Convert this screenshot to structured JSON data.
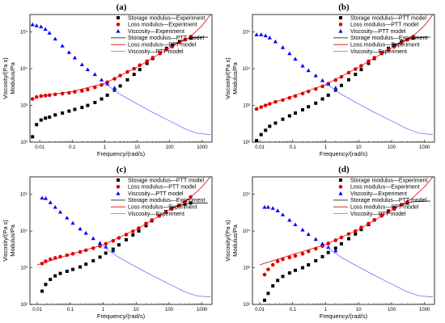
{
  "chart_data": [
    {
      "type": "line",
      "panel_label": "(a)",
      "xlabel": "Frequency/(rad/s)",
      "ylabel": [
        "Viscosity/(Pa s)",
        "Modulus/Pa"
      ],
      "x_scale": "log",
      "y_scale": "log",
      "xlim": [
        0.005,
        2000
      ],
      "ylim": [
        100,
        300000
      ],
      "x_ticks": [
        "0.01",
        "0.1",
        "1",
        "10",
        "100",
        "1000"
      ],
      "y_ticks": [
        "10²",
        "10³",
        "10⁴",
        "10⁵"
      ],
      "legend": [
        "Storage modulus—Experiment",
        "Loss modulus—Experiment",
        "Viscosity—Experiment",
        "Storage modulus—PTT model",
        "Loss modulus—PTT model",
        "Viscosity—PTT model"
      ],
      "series": [
        {
          "name": "Storage modulus—Experiment",
          "kind": "marker",
          "marker": "square",
          "color": "#000000",
          "x": [
            0.006,
            0.008,
            0.011,
            0.015,
            0.02,
            0.03,
            0.05,
            0.08,
            0.12,
            0.2,
            0.3,
            0.5,
            0.8,
            1.2,
            2,
            3,
            5,
            8,
            12,
            20,
            30,
            50,
            80,
            120,
            200,
            300,
            450
          ],
          "y": [
            140,
            300,
            400,
            450,
            480,
            550,
            620,
            700,
            780,
            880,
            1000,
            1200,
            1500,
            1900,
            2600,
            3400,
            5000,
            7000,
            9500,
            14000,
            19000,
            27000,
            36000,
            44000,
            55000,
            62000,
            68000
          ]
        },
        {
          "name": "Loss modulus—Experiment",
          "kind": "marker",
          "marker": "circle",
          "color": "#e00000",
          "x": [
            0.006,
            0.008,
            0.011,
            0.015,
            0.02,
            0.03,
            0.05,
            0.08,
            0.12,
            0.2,
            0.3,
            0.5,
            0.8,
            1.2,
            2,
            3,
            5,
            8,
            12,
            20,
            30,
            50,
            80,
            120,
            200,
            300,
            450
          ],
          "y": [
            1500,
            1700,
            1800,
            1850,
            1900,
            2000,
            2100,
            2200,
            2350,
            2500,
            2700,
            3100,
            3600,
            4300,
            5300,
            6500,
            8200,
            10000,
            12500,
            16000,
            20000,
            26000,
            33000,
            40000,
            52000,
            62000,
            75000
          ]
        },
        {
          "name": "Viscosity—Experiment",
          "kind": "marker",
          "marker": "triangle",
          "color": "#0000ff",
          "x": [
            0.006,
            0.008,
            0.011,
            0.015,
            0.02,
            0.03,
            0.05,
            0.08,
            0.12,
            0.2,
            0.3,
            0.5,
            0.8,
            1.2,
            2
          ],
          "y": [
            160000,
            150000,
            140000,
            120000,
            95000,
            65000,
            42000,
            28000,
            20000,
            13000,
            9500,
            7000,
            5000,
            3900,
            3000
          ]
        },
        {
          "name": "Storage modulus—PTT model",
          "kind": "line",
          "color": "#000000",
          "x": [
            100,
            200,
            400,
            800,
            1500
          ],
          "y": [
            40000,
            55000,
            68000,
            72000,
            72500
          ]
        },
        {
          "name": "Loss modulus—PTT model",
          "kind": "line",
          "color": "#e00000",
          "x": [
            0.01,
            0.1,
            1,
            10,
            100,
            400,
            1000,
            1800
          ],
          "y": [
            1800,
            2400,
            4000,
            11000,
            37000,
            70000,
            150000,
            300000
          ]
        },
        {
          "name": "Viscosity—PTT model",
          "kind": "line",
          "color": "#7070ff",
          "x": [
            1,
            3,
            10,
            30,
            100,
            300,
            700,
            1800
          ],
          "y": [
            4000,
            2000,
            1100,
            650,
            380,
            230,
            175,
            160
          ]
        }
      ]
    },
    {
      "type": "line",
      "panel_label": "(b)",
      "xlabel": "Frequency/(rad/s)",
      "ylabel": [
        "Viscosity/(Pa s)",
        "Modulus/Pa"
      ],
      "x_scale": "log",
      "y_scale": "log",
      "xlim": [
        0.006,
        2000
      ],
      "ylim": [
        100,
        300000
      ],
      "x_ticks": [
        "0.01",
        "0.1",
        "1",
        "10",
        "100",
        "1000"
      ],
      "y_ticks": [
        "10²",
        "10³",
        "10⁴",
        "10⁵"
      ],
      "legend": [
        "Storage modulus—PTT model",
        "Loss modulus—PTT model",
        "Viscosity—PTT model",
        "Storage modulus—Experiment",
        "Loss modulus—Experiment",
        "Viscosity—Experiment"
      ],
      "series": [
        {
          "name": "Storage modulus—PTT model",
          "kind": "marker",
          "marker": "square",
          "color": "#000000",
          "x": [
            0.008,
            0.011,
            0.015,
            0.02,
            0.03,
            0.05,
            0.08,
            0.12,
            0.2,
            0.3,
            0.5,
            0.8,
            1.2,
            2,
            3,
            5,
            8,
            12,
            20,
            30,
            50,
            80,
            120,
            200,
            300,
            450
          ],
          "y": [
            110,
            160,
            210,
            270,
            330,
            420,
            520,
            620,
            760,
            920,
            1150,
            1500,
            1900,
            2600,
            3500,
            5000,
            7000,
            9500,
            14000,
            19000,
            27000,
            36000,
            44000,
            55000,
            62000,
            68000
          ]
        },
        {
          "name": "Loss modulus—PTT model",
          "kind": "marker",
          "marker": "circle",
          "color": "#e00000",
          "x": [
            0.008,
            0.011,
            0.015,
            0.02,
            0.03,
            0.05,
            0.08,
            0.12,
            0.2,
            0.3,
            0.5,
            0.8,
            1.2,
            2,
            3,
            5,
            8,
            12,
            20,
            30,
            50,
            80,
            120,
            200,
            300,
            450
          ],
          "y": [
            800,
            900,
            1000,
            1100,
            1250,
            1400,
            1600,
            1800,
            2100,
            2400,
            2800,
            3300,
            3900,
            4900,
            6000,
            7800,
            9800,
            12000,
            16000,
            20000,
            26000,
            33000,
            40000,
            52000,
            62000,
            75000
          ]
        },
        {
          "name": "Viscosity—PTT model",
          "kind": "marker",
          "marker": "triangle",
          "color": "#0000ff",
          "x": [
            0.008,
            0.011,
            0.015,
            0.02,
            0.03,
            0.05,
            0.08,
            0.12,
            0.2,
            0.3,
            0.5,
            0.8,
            1.2,
            2
          ],
          "y": [
            85000,
            85000,
            80000,
            70000,
            55000,
            38000,
            26000,
            18500,
            12000,
            9000,
            6500,
            4800,
            3800,
            3000
          ]
        },
        {
          "name": "Storage modulus—Experiment",
          "kind": "line",
          "color": "#000000",
          "x": [
            100,
            200,
            400,
            800,
            1500
          ],
          "y": [
            40000,
            55000,
            68000,
            72000,
            72500
          ]
        },
        {
          "name": "Loss modulus—Experiment",
          "kind": "line",
          "color": "#e00000",
          "x": [
            0.01,
            0.1,
            1,
            10,
            100,
            400,
            1000,
            1800
          ],
          "y": [
            900,
            1800,
            3700,
            11000,
            37000,
            70000,
            150000,
            300000
          ]
        },
        {
          "name": "Viscosity—Experiment",
          "kind": "line",
          "color": "#7070ff",
          "x": [
            1,
            3,
            10,
            30,
            100,
            300,
            700,
            1800
          ],
          "y": [
            4000,
            2000,
            1100,
            650,
            380,
            230,
            175,
            160
          ]
        }
      ]
    },
    {
      "type": "line",
      "panel_label": "(c)",
      "xlabel": "Frequency/(rad/s)",
      "ylabel": [
        "Viscosity/(Pa s)",
        "Modulus/Pa"
      ],
      "x_scale": "log",
      "y_scale": "log",
      "xlim": [
        0.006,
        2000
      ],
      "ylim": [
        100,
        300000
      ],
      "x_ticks": [
        "0.01",
        "0.1",
        "1",
        "10",
        "100",
        "1000"
      ],
      "y_ticks": [
        "10²",
        "10³",
        "10⁴",
        "10⁵"
      ],
      "legend": [
        "Storage modulus—PTT model",
        "Loss modulus—PTT model",
        "Viscosity—PTT model",
        "Storage modulus—Experiment",
        "Loss modulus—Experiment",
        "Viscosity—Experiment"
      ],
      "series": [
        {
          "name": "Storage modulus—PTT model",
          "kind": "marker",
          "marker": "square",
          "color": "#000000",
          "x": [
            0.014,
            0.018,
            0.025,
            0.035,
            0.05,
            0.08,
            0.12,
            0.2,
            0.3,
            0.5,
            0.8,
            1.2,
            2,
            3,
            5,
            8,
            12,
            20,
            30,
            50,
            80,
            120,
            200,
            300,
            450
          ],
          "y": [
            230,
            350,
            480,
            600,
            700,
            800,
            900,
            1050,
            1250,
            1550,
            1950,
            2500,
            3200,
            4200,
            5800,
            7800,
            10000,
            14000,
            19000,
            26000,
            34000,
            42000,
            50000,
            55000,
            58000
          ]
        },
        {
          "name": "Loss modulus—PTT model",
          "kind": "marker",
          "marker": "circle",
          "color": "#e00000",
          "x": [
            0.014,
            0.018,
            0.025,
            0.035,
            0.05,
            0.08,
            0.12,
            0.2,
            0.3,
            0.5,
            0.8,
            1.2,
            2,
            3,
            5,
            8,
            12,
            20,
            30,
            50,
            80,
            120,
            200,
            300,
            450
          ],
          "y": [
            1300,
            1500,
            1700,
            1850,
            2000,
            2200,
            2400,
            2700,
            3000,
            3400,
            3900,
            4500,
            5400,
            6500,
            8000,
            9800,
            12000,
            16000,
            20000,
            26000,
            33000,
            40000,
            50000,
            62000,
            85000
          ]
        },
        {
          "name": "Viscosity—PTT model",
          "kind": "marker",
          "marker": "triangle",
          "color": "#0000ff",
          "x": [
            0.014,
            0.018,
            0.025,
            0.035,
            0.05,
            0.08,
            0.12,
            0.2,
            0.3,
            0.5,
            0.8,
            1.2,
            2
          ],
          "y": [
            80000,
            78000,
            60000,
            45000,
            33000,
            23000,
            16500,
            11500,
            8800,
            6300,
            4700,
            3700,
            2900
          ]
        },
        {
          "name": "Storage modulus—Experiment",
          "kind": "line",
          "color": "#000000",
          "x": [
            100,
            200,
            400,
            800,
            1500
          ],
          "y": [
            38000,
            50000,
            57000,
            58500,
            58500
          ]
        },
        {
          "name": "Loss modulus—Experiment",
          "kind": "line",
          "color": "#e00000",
          "x": [
            0.01,
            0.1,
            1,
            10,
            100,
            400,
            1000,
            1800
          ],
          "y": [
            1200,
            2300,
            4200,
            11000,
            37000,
            75000,
            160000,
            300000
          ]
        },
        {
          "name": "Viscosity—Experiment",
          "kind": "line",
          "color": "#7070ff",
          "x": [
            1,
            3,
            10,
            30,
            100,
            300,
            700,
            1800
          ],
          "y": [
            3800,
            1900,
            1050,
            620,
            360,
            220,
            170,
            160
          ]
        }
      ]
    },
    {
      "type": "line",
      "panel_label": "(d)",
      "xlabel": "Frequency/(rad/s)",
      "ylabel": [
        "Viscosity/(Pa s)",
        "Modulus/Pa"
      ],
      "x_scale": "log",
      "y_scale": "log",
      "xlim": [
        0.006,
        2000
      ],
      "ylim": [
        100,
        300000
      ],
      "x_ticks": [
        "0.01",
        "0.1",
        "1",
        "10",
        "100",
        "1000"
      ],
      "y_ticks": [
        "10²",
        "10³",
        "10⁴",
        "10⁵"
      ],
      "legend": [
        "Storage modulus—Experiment",
        "Loss modulus—Experiment",
        "Viscosity—Experiment",
        "Storage modulus—PTT model",
        "Loss modulus—PTT model",
        "Viscosity—PTT model"
      ],
      "series": [
        {
          "name": "Storage modulus—Experiment",
          "kind": "marker",
          "marker": "square",
          "color": "#000000",
          "x": [
            0.014,
            0.018,
            0.025,
            0.035,
            0.05,
            0.08,
            0.12,
            0.2,
            0.3,
            0.5,
            0.8,
            1.2,
            2,
            3,
            5,
            8,
            12,
            20,
            30,
            50,
            80,
            120,
            200,
            300
          ],
          "y": [
            130,
            200,
            320,
            450,
            580,
            720,
            850,
            1000,
            1200,
            1550,
            2000,
            2600,
            3400,
            4500,
            6200,
            8300,
            11000,
            15000,
            20000,
            27000,
            35000,
            43000,
            52000,
            58000
          ]
        },
        {
          "name": "Loss modulus—Experiment",
          "kind": "marker",
          "marker": "circle",
          "color": "#e00000",
          "x": [
            0.014,
            0.018,
            0.025,
            0.035,
            0.05,
            0.08,
            0.12,
            0.2,
            0.3,
            0.5,
            0.8,
            1.2,
            2,
            3,
            5,
            8,
            12,
            20,
            30,
            50,
            80,
            120,
            200,
            300
          ],
          "y": [
            650,
            900,
            1200,
            1500,
            1700,
            1900,
            2100,
            2400,
            2800,
            3300,
            3900,
            4600,
            5600,
            6700,
            8300,
            10000,
            12500,
            16000,
            20000,
            26000,
            33000,
            40000,
            52000,
            62000
          ]
        },
        {
          "name": "Viscosity—Experiment",
          "kind": "marker",
          "marker": "triangle",
          "color": "#0000ff",
          "x": [
            0.014,
            0.018,
            0.025,
            0.035,
            0.05,
            0.08,
            0.12,
            0.2,
            0.3,
            0.5,
            0.8,
            1.2,
            2
          ],
          "y": [
            45000,
            45000,
            42000,
            36000,
            28000,
            20000,
            15000,
            10800,
            8200,
            6000,
            4500,
            3600,
            2900
          ]
        },
        {
          "name": "Storage modulus—PTT model",
          "kind": "line",
          "color": "#000000",
          "x": [
            100,
            200,
            400,
            800,
            1500
          ],
          "y": [
            38000,
            52000,
            62000,
            65000,
            65500
          ]
        },
        {
          "name": "Loss modulus—PTT model",
          "kind": "line",
          "color": "#e00000",
          "x": [
            0.01,
            0.1,
            1,
            10,
            100,
            400,
            1000,
            1800
          ],
          "y": [
            1200,
            2300,
            4300,
            11000,
            37000,
            75000,
            160000,
            300000
          ]
        },
        {
          "name": "Viscosity—PTT model",
          "kind": "line",
          "color": "#7070ff",
          "x": [
            1,
            3,
            10,
            30,
            100,
            300,
            700,
            1800
          ],
          "y": [
            3800,
            1900,
            1050,
            620,
            360,
            220,
            170,
            160
          ]
        }
      ]
    }
  ]
}
